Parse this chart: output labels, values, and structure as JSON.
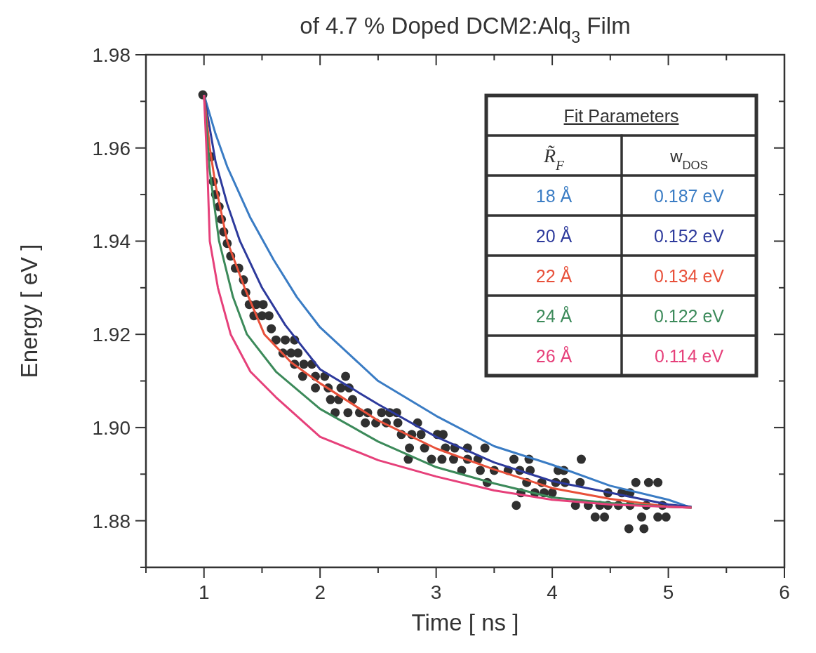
{
  "chart_data": {
    "type": "line",
    "title": "of 4.7 % Doped DCM2:Alq$_{3}$ Film",
    "xlabel": "Time [ ns ]",
    "ylabel": "Energy [ eV ]",
    "xlim": [
      0.5,
      6
    ],
    "ylim": [
      1.87,
      1.98
    ],
    "xticks": [
      {
        "value": 0.5,
        "label": null
      },
      1,
      {
        "value": 1.5,
        "label": null
      },
      2,
      {
        "value": 2.5,
        "label": null
      },
      3,
      {
        "value": 3.5,
        "label": null
      },
      4,
      {
        "value": 4.5,
        "label": null
      },
      5,
      {
        "value": 5.5,
        "label": null
      },
      6
    ],
    "yticks": [
      {
        "value": 1.87,
        "label": null
      },
      1.88,
      {
        "value": 1.89,
        "label": null
      },
      "1.90",
      {
        "value": 1.91,
        "label": null
      },
      1.92,
      {
        "value": 1.93,
        "label": null
      },
      1.94,
      {
        "value": 1.95,
        "label": null
      },
      1.96,
      {
        "value": 1.97,
        "label": null
      },
      1.98
    ],
    "legend": "top right",
    "legend_title": "Fit Parameters",
    "marker": "none",
    "line_style": "solid",
    "grid": false,
    "annotations": [
      "R̃$_{F}$",
      "w$_{DOS}$",
      "0.187 eV",
      "0.152 eV",
      "0.134 eV",
      "0.122 eV",
      "0.114 eV"
    ],
    "series": [
      {
        "type": "scatter",
        "marker": "circle",
        "color": "#303030",
        "x": [
          0.99,
          1.06,
          1.08,
          1.1,
          1.13,
          1.15,
          1.17,
          1.2,
          1.23,
          1.27,
          1.3,
          1.34,
          1.36,
          1.39,
          1.45,
          1.51,
          1.43,
          1.5,
          1.56,
          1.58,
          1.62,
          1.7,
          1.78,
          1.68,
          1.75,
          1.81,
          1.78,
          1.86,
          1.93,
          1.85,
          1.96,
          2.04,
          2.22,
          1.96,
          2.07,
          2.18,
          2.25,
          2.09,
          2.16,
          2.28,
          2.13,
          2.24,
          2.34,
          2.41,
          2.53,
          2.6,
          2.66,
          2.39,
          2.48,
          2.57,
          2.67,
          2.84,
          2.7,
          2.79,
          2.87,
          3.01,
          3.06,
          2.77,
          2.9,
          3.08,
          3.16,
          3.27,
          3.42,
          2.76,
          2.96,
          3.05,
          3.15,
          3.27,
          3.36,
          3.67,
          3.8,
          4.25,
          3.22,
          3.38,
          3.5,
          3.62,
          3.72,
          3.81,
          4.05,
          4.1,
          3.44,
          3.78,
          3.91,
          4.03,
          4.11,
          4.24,
          4.72,
          4.83,
          4.91,
          3.73,
          3.85,
          3.93,
          4.0,
          4.48,
          4.6,
          4.67,
          3.69,
          4.2,
          4.31,
          4.41,
          4.48,
          4.57,
          4.67,
          4.81,
          4.95,
          4.37,
          4.45,
          4.77,
          4.91,
          4.98,
          4.66,
          4.79
        ],
        "values": [
          1.9714,
          1.9581,
          1.9528,
          1.95,
          1.9474,
          1.9447,
          1.942,
          1.9395,
          1.9368,
          1.9342,
          1.9342,
          1.9317,
          1.929,
          1.9264,
          1.9264,
          1.9264,
          1.924,
          1.924,
          1.924,
          1.9212,
          1.9188,
          1.9188,
          1.9188,
          1.916,
          1.916,
          1.916,
          1.9136,
          1.9136,
          1.9136,
          1.911,
          1.911,
          1.911,
          1.911,
          1.9085,
          1.9085,
          1.9085,
          1.9085,
          1.906,
          1.906,
          1.906,
          1.9032,
          1.9032,
          1.9032,
          1.9032,
          1.9032,
          1.9032,
          1.9032,
          1.901,
          1.901,
          1.901,
          1.901,
          1.901,
          1.8985,
          1.8985,
          1.8985,
          1.8985,
          1.8985,
          1.8956,
          1.8956,
          1.8956,
          1.8956,
          1.8956,
          1.8956,
          1.8932,
          1.8932,
          1.8932,
          1.8932,
          1.8932,
          1.8932,
          1.8932,
          1.8932,
          1.8932,
          1.8908,
          1.8908,
          1.8908,
          1.8908,
          1.8908,
          1.8908,
          1.8908,
          1.8908,
          1.8882,
          1.8882,
          1.8882,
          1.8882,
          1.8882,
          1.8882,
          1.8882,
          1.8882,
          1.8882,
          1.886,
          1.886,
          1.886,
          1.886,
          1.886,
          1.886,
          1.886,
          1.8833,
          1.8833,
          1.8833,
          1.8833,
          1.8833,
          1.8833,
          1.8833,
          1.8833,
          1.8833,
          1.8808,
          1.8808,
          1.8808,
          1.8808,
          1.8808,
          1.8783,
          1.8783
        ]
      },
      {
        "name": "18 Å",
        "color": "#3a7cc4",
        "x": [
          1,
          1.1,
          1.2,
          1.4,
          1.6,
          1.8,
          2,
          2.5,
          3,
          3.5,
          4,
          4.5,
          5,
          5.2
        ],
        "values": [
          1.9714,
          1.963,
          1.956,
          1.945,
          1.936,
          1.928,
          1.9215,
          1.91,
          1.9025,
          1.896,
          1.892,
          1.8875,
          1.8845,
          1.8828
        ]
      },
      {
        "name": "20 Å",
        "color": "#2d3a9c",
        "x": [
          1,
          1.1,
          1.2,
          1.31,
          1.5,
          1.7,
          2,
          2.5,
          3,
          3.5,
          4,
          4.5,
          5,
          5.2
        ],
        "values": [
          1.9714,
          1.957,
          1.948,
          1.94,
          1.93,
          1.922,
          1.9125,
          1.905,
          1.898,
          1.8925,
          1.8885,
          1.886,
          1.8835,
          1.883
        ]
      },
      {
        "name": "22 Å",
        "color": "#e8503a",
        "x": [
          1,
          1.05,
          1.1,
          1.2,
          1.35,
          1.52,
          1.75,
          2,
          2.5,
          3,
          3.5,
          4,
          4.5,
          5,
          5.2
        ],
        "values": [
          1.9714,
          1.96,
          1.952,
          1.94,
          1.93,
          1.92,
          1.914,
          1.9095,
          1.9015,
          1.8955,
          1.891,
          1.887,
          1.8847,
          1.883,
          1.8828
        ]
      },
      {
        "name": "24 Å",
        "color": "#3c8a5a",
        "x": [
          1,
          1.05,
          1.13,
          1.25,
          1.37,
          1.62,
          2,
          2.5,
          3,
          3.5,
          4,
          4.5,
          5,
          5.2
        ],
        "values": [
          1.9714,
          1.955,
          1.94,
          1.928,
          1.92,
          1.912,
          1.904,
          1.897,
          1.8915,
          1.888,
          1.885,
          1.8838,
          1.883,
          1.8828
        ]
      },
      {
        "name": "26 Å",
        "color": "#e6407a",
        "x": [
          1,
          1.03,
          1.05,
          1.12,
          1.23,
          1.4,
          1.62,
          2,
          2.5,
          3,
          3.5,
          4,
          4.5,
          5,
          5.2
        ],
        "values": [
          1.9714,
          1.955,
          1.94,
          1.93,
          1.92,
          1.912,
          1.9065,
          1.898,
          1.893,
          1.8895,
          1.8865,
          1.8845,
          1.8835,
          1.883,
          1.8828
        ]
      }
    ]
  }
}
